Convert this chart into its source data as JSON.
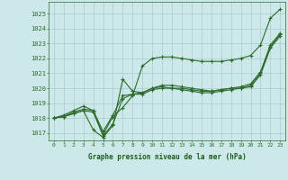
{
  "x": [
    0,
    1,
    2,
    3,
    4,
    5,
    6,
    7,
    8,
    9,
    10,
    11,
    12,
    13,
    14,
    15,
    16,
    17,
    18,
    19,
    20,
    21,
    22,
    23
  ],
  "line1": [
    1018.0,
    1018.1,
    1018.4,
    1018.6,
    1018.5,
    1016.9,
    1018.1,
    1018.7,
    1019.5,
    1021.5,
    1022.0,
    1022.1,
    1022.1,
    1022.0,
    1021.9,
    1021.8,
    1021.8,
    1021.8,
    1021.9,
    1022.0,
    1022.2,
    1022.9,
    1024.7,
    1025.3
  ],
  "line2": [
    1018.0,
    1018.1,
    1018.3,
    1018.5,
    1017.2,
    1016.7,
    1017.5,
    1020.6,
    1019.8,
    1019.7,
    1020.0,
    1020.1,
    1020.0,
    1020.0,
    1019.9,
    1019.8,
    1019.8,
    1019.9,
    1020.0,
    1020.0,
    1020.2,
    1021.0,
    1022.8,
    1023.6
  ],
  "line3": [
    1018.0,
    1018.2,
    1018.5,
    1018.8,
    1018.5,
    1017.1,
    1018.2,
    1019.5,
    1019.6,
    1019.7,
    1020.0,
    1020.2,
    1020.2,
    1020.1,
    1020.0,
    1019.9,
    1019.8,
    1019.9,
    1020.0,
    1020.1,
    1020.3,
    1021.1,
    1022.9,
    1023.7
  ],
  "line4": [
    1018.0,
    1018.1,
    1018.3,
    1018.5,
    1018.4,
    1016.8,
    1017.6,
    1019.3,
    1019.6,
    1019.6,
    1019.9,
    1020.0,
    1020.0,
    1019.9,
    1019.8,
    1019.7,
    1019.7,
    1019.8,
    1019.9,
    1020.0,
    1020.1,
    1020.9,
    1022.7,
    1023.5
  ],
  "ylim": [
    1016.5,
    1025.8
  ],
  "yticks": [
    1017,
    1018,
    1019,
    1020,
    1021,
    1022,
    1023,
    1024,
    1025
  ],
  "xtick_labels": [
    "0",
    "1",
    "2",
    "3",
    "4",
    "5",
    "6",
    "7",
    "8",
    "9",
    "10",
    "11",
    "12",
    "13",
    "14",
    "15",
    "16",
    "17",
    "18",
    "19",
    "20",
    "21",
    "22",
    "23"
  ],
  "xlabel": "Graphe pression niveau de la mer (hPa)",
  "line_color": "#2d6a2d",
  "marker": "+",
  "bg_color": "#cce8e8",
  "grid_color": "#aacccc",
  "title_color": "#1a5c1a"
}
